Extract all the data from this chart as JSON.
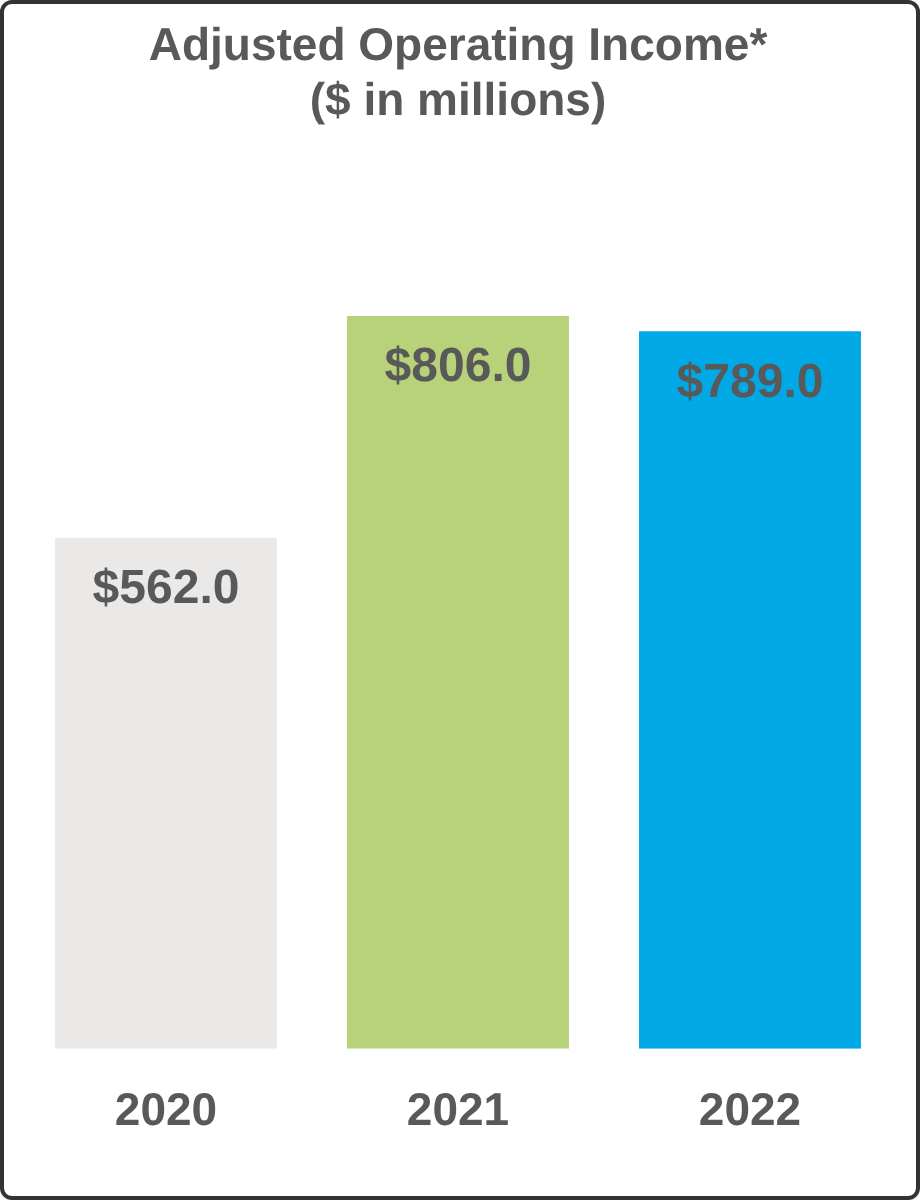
{
  "chart_data": {
    "type": "bar",
    "title": [
      "Adjusted Operating Income*",
      "($ in millions)"
    ],
    "categories": [
      "2020",
      "2021",
      "2022"
    ],
    "values": [
      562.0,
      806.0,
      789.0
    ],
    "colors": [
      "#eae9e7",
      "#b8d27a",
      "#00a9e6"
    ],
    "value_labels": [
      "$562.0",
      "$806.0",
      "$789.0"
    ],
    "grid": false,
    "legend": false
  }
}
